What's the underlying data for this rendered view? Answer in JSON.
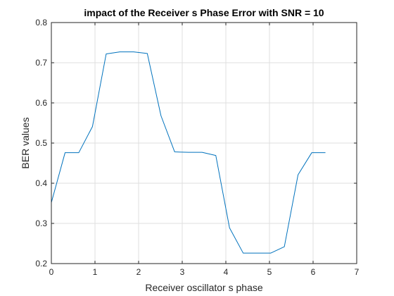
{
  "chart_data": {
    "type": "line",
    "title": "impact of the Receiver s Phase Error with SNR = 10",
    "xlabel": "Receiver oscillator s phase",
    "ylabel": "BER values",
    "xlim": [
      0,
      7
    ],
    "ylim": [
      0.2,
      0.8
    ],
    "xticks": [
      "0",
      "1",
      "2",
      "3",
      "4",
      "5",
      "6",
      "7"
    ],
    "yticks": [
      "0.2",
      "0.3",
      "0.4",
      "0.5",
      "0.6",
      "0.7",
      "0.8"
    ],
    "grid": true,
    "series": [
      {
        "color": "#0072bd",
        "x": [
          0,
          0.314,
          0.628,
          0.942,
          1.257,
          1.571,
          1.885,
          2.199,
          2.513,
          2.827,
          3.142,
          3.456,
          3.77,
          4.084,
          4.398,
          4.712,
          5.027,
          5.341,
          5.655,
          5.969,
          6.283
        ],
        "y": [
          0.352,
          0.476,
          0.476,
          0.541,
          0.722,
          0.727,
          0.727,
          0.723,
          0.568,
          0.478,
          0.477,
          0.477,
          0.469,
          0.289,
          0.226,
          0.226,
          0.226,
          0.242,
          0.421,
          0.476,
          0.476
        ]
      }
    ]
  }
}
